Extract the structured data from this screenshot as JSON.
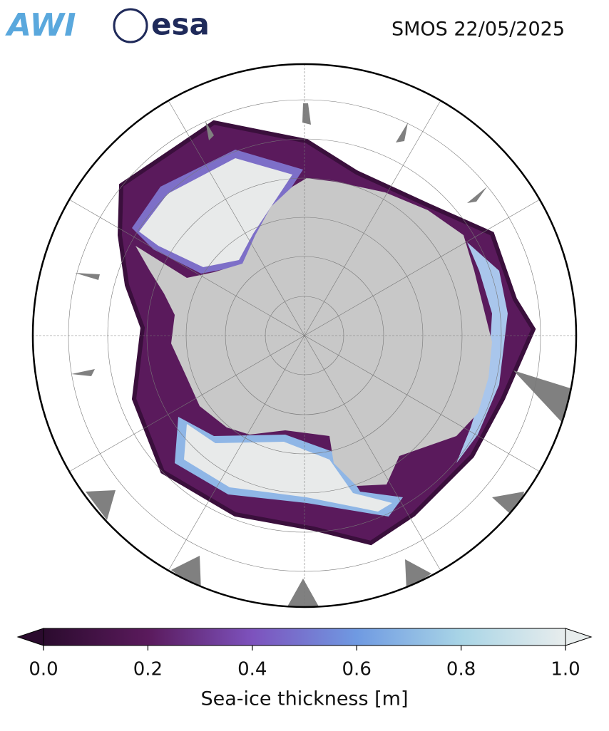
{
  "header": {
    "logos": [
      "AWI",
      "esa"
    ],
    "title": "SMOS 22/05/2025"
  },
  "colorbar": {
    "label": "Sea-ice thickness [m]",
    "lim": [
      0,
      1
    ],
    "ticks": [
      {
        "value": 0,
        "label": "0.0"
      },
      0.2,
      0.4,
      0.6,
      0.8,
      {
        "value": 1,
        "label": "1.0"
      }
    ],
    "colors": [
      "#2b0b2e",
      "#5a1a5c",
      "#7d52bd",
      "#6f9ae2",
      "#a9d5e6",
      "#e8eded"
    ]
  }
}
